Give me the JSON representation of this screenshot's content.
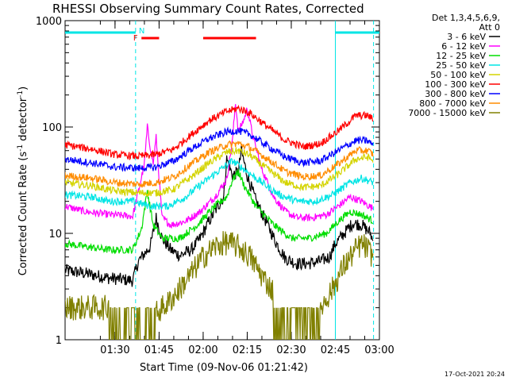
{
  "chart_data": {
    "type": "line",
    "title": "RHESSI Observing Summary Count Rates, Corrected",
    "xlabel": "Start Time (09-Nov-06 01:21:42)",
    "ylabel_main": "Corrected Count Rate (s",
    "ylabel_sup1": "-1",
    "ylabel_mid": " detector",
    "ylabel_sup2": "-1",
    "ylabel_end": ")",
    "y_scale": "log",
    "ylim": [
      1,
      1000
    ],
    "xlim_minutes": [
      -9,
      98
    ],
    "x_ticks": [
      {
        "label": "01:30",
        "min": 8
      },
      {
        "label": "01:45",
        "min": 23
      },
      {
        "label": "02:00",
        "min": 38
      },
      {
        "label": "02:15",
        "min": 53
      },
      {
        "label": "02:30",
        "min": 68
      },
      {
        "label": "02:45",
        "min": 83
      },
      {
        "label": "03:00",
        "min": 98
      }
    ],
    "y_ticks": [
      {
        "label": "1",
        "value": 1
      },
      {
        "label": "10",
        "value": 10
      },
      {
        "label": "100",
        "value": 100
      },
      {
        "label": "1000",
        "value": 1000
      }
    ],
    "legend_header": [
      "Det 1,3,4,5,6,9,",
      "Att 0"
    ],
    "series": [
      {
        "name": "3 - 6 keV",
        "color": "#000000",
        "values_min": [
          [
            -9,
            4.5
          ],
          [
            -2,
            4.2
          ],
          [
            6,
            3.8
          ],
          [
            14,
            3.6
          ],
          [
            16,
            5.5
          ],
          [
            20,
            7.5
          ],
          [
            22,
            14
          ],
          [
            24,
            9
          ],
          [
            27,
            7
          ],
          [
            30,
            6.2
          ],
          [
            34,
            7
          ],
          [
            37,
            9
          ],
          [
            40,
            13
          ],
          [
            43,
            18
          ],
          [
            45,
            22
          ],
          [
            46,
            50
          ],
          [
            48,
            35
          ],
          [
            50,
            38
          ],
          [
            51,
            60
          ],
          [
            53,
            35
          ],
          [
            56,
            20
          ],
          [
            60,
            12
          ],
          [
            63,
            8
          ],
          [
            66,
            5.8
          ],
          [
            70,
            5.2
          ],
          [
            74,
            5.2
          ],
          [
            78,
            5.5
          ],
          [
            81,
            6
          ],
          [
            83,
            8
          ],
          [
            86,
            10
          ],
          [
            89,
            12.5
          ],
          [
            92,
            12
          ],
          [
            95,
            10
          ],
          [
            96,
            8
          ]
        ]
      },
      {
        "name": "6 - 12 keV",
        "color": "#ff00ff",
        "values_min": [
          [
            -9,
            18
          ],
          [
            -2,
            16
          ],
          [
            6,
            15
          ],
          [
            14,
            14.5
          ],
          [
            16,
            25
          ],
          [
            18,
            45
          ],
          [
            19,
            100
          ],
          [
            20,
            65
          ],
          [
            21,
            45
          ],
          [
            22,
            80
          ],
          [
            24,
            14
          ],
          [
            27,
            12
          ],
          [
            32,
            13
          ],
          [
            37,
            16
          ],
          [
            42,
            22
          ],
          [
            46,
            32
          ],
          [
            48,
            75
          ],
          [
            49,
            170
          ],
          [
            50,
            90
          ],
          [
            52,
            120
          ],
          [
            53,
            150
          ],
          [
            55,
            80
          ],
          [
            58,
            40
          ],
          [
            62,
            22
          ],
          [
            66,
            16
          ],
          [
            70,
            14
          ],
          [
            75,
            14
          ],
          [
            80,
            15
          ],
          [
            84,
            18
          ],
          [
            88,
            22
          ],
          [
            92,
            20
          ],
          [
            96,
            17
          ]
        ]
      },
      {
        "name": "12 - 25 keV",
        "color": "#00dd00",
        "values_min": [
          [
            -9,
            8
          ],
          [
            -2,
            7.5
          ],
          [
            6,
            7
          ],
          [
            14,
            7
          ],
          [
            17,
            11
          ],
          [
            19,
            25
          ],
          [
            21,
            12
          ],
          [
            24,
            9
          ],
          [
            30,
            9
          ],
          [
            36,
            12
          ],
          [
            42,
            18
          ],
          [
            46,
            22
          ],
          [
            48,
            32
          ],
          [
            50,
            38
          ],
          [
            52,
            28
          ],
          [
            56,
            18
          ],
          [
            62,
            12
          ],
          [
            68,
            9
          ],
          [
            74,
            9
          ],
          [
            80,
            10
          ],
          [
            84,
            13
          ],
          [
            88,
            16
          ],
          [
            92,
            15
          ],
          [
            96,
            13
          ]
        ]
      },
      {
        "name": "25 - 50 keV",
        "color": "#00e5e5",
        "values_min": [
          [
            -9,
            23
          ],
          [
            0,
            22
          ],
          [
            6,
            20
          ],
          [
            14,
            20
          ],
          [
            20,
            18
          ],
          [
            26,
            18
          ],
          [
            32,
            22
          ],
          [
            38,
            30
          ],
          [
            44,
            40
          ],
          [
            48,
            48
          ],
          [
            52,
            40
          ],
          [
            58,
            30
          ],
          [
            64,
            23
          ],
          [
            70,
            20
          ],
          [
            76,
            20
          ],
          [
            82,
            23
          ],
          [
            88,
            30
          ],
          [
            92,
            33
          ],
          [
            96,
            30
          ]
        ]
      },
      {
        "name": "50 - 100 keV",
        "color": "#d4d400",
        "values_min": [
          [
            -9,
            30
          ],
          [
            0,
            28
          ],
          [
            8,
            25
          ],
          [
            16,
            24
          ],
          [
            22,
            24
          ],
          [
            28,
            26
          ],
          [
            34,
            34
          ],
          [
            40,
            46
          ],
          [
            46,
            58
          ],
          [
            50,
            60
          ],
          [
            54,
            54
          ],
          [
            60,
            40
          ],
          [
            66,
            30
          ],
          [
            72,
            27
          ],
          [
            78,
            28
          ],
          [
            84,
            36
          ],
          [
            90,
            50
          ],
          [
            94,
            52
          ],
          [
            96,
            48
          ]
        ]
      },
      {
        "name": "100 - 300 keV",
        "color": "#ff0000",
        "values_min": [
          [
            -9,
            68
          ],
          [
            0,
            62
          ],
          [
            8,
            55
          ],
          [
            16,
            53
          ],
          [
            22,
            55
          ],
          [
            28,
            62
          ],
          [
            34,
            85
          ],
          [
            40,
            115
          ],
          [
            46,
            140
          ],
          [
            50,
            150
          ],
          [
            54,
            135
          ],
          [
            60,
            100
          ],
          [
            66,
            75
          ],
          [
            72,
            65
          ],
          [
            78,
            70
          ],
          [
            84,
            92
          ],
          [
            90,
            128
          ],
          [
            94,
            128
          ],
          [
            96,
            118
          ]
        ]
      },
      {
        "name": "300 - 800 keV",
        "color": "#0000ff",
        "values_min": [
          [
            -9,
            50
          ],
          [
            0,
            46
          ],
          [
            8,
            42
          ],
          [
            16,
            41
          ],
          [
            22,
            42
          ],
          [
            28,
            48
          ],
          [
            34,
            62
          ],
          [
            40,
            78
          ],
          [
            46,
            90
          ],
          [
            50,
            92
          ],
          [
            54,
            85
          ],
          [
            60,
            66
          ],
          [
            66,
            52
          ],
          [
            72,
            46
          ],
          [
            78,
            48
          ],
          [
            84,
            60
          ],
          [
            90,
            75
          ],
          [
            94,
            74
          ],
          [
            96,
            68
          ]
        ]
      },
      {
        "name": "800 - 7000 keV",
        "color": "#ff8c00",
        "values_min": [
          [
            -9,
            35
          ],
          [
            0,
            33
          ],
          [
            8,
            30
          ],
          [
            16,
            29
          ],
          [
            22,
            30
          ],
          [
            28,
            34
          ],
          [
            34,
            45
          ],
          [
            40,
            58
          ],
          [
            46,
            68
          ],
          [
            50,
            70
          ],
          [
            54,
            64
          ],
          [
            60,
            50
          ],
          [
            66,
            38
          ],
          [
            72,
            34
          ],
          [
            78,
            35
          ],
          [
            84,
            45
          ],
          [
            90,
            60
          ],
          [
            94,
            60
          ],
          [
            96,
            55
          ]
        ]
      },
      {
        "name": "7000 - 15000 keV",
        "color": "#808000",
        "values_min": [
          [
            -9,
            2
          ],
          [
            6,
            2
          ],
          [
            10,
            1.5
          ],
          [
            14,
            1.4
          ],
          [
            18,
            1.6
          ],
          [
            22,
            1.8
          ],
          [
            26,
            2.2
          ],
          [
            30,
            3
          ],
          [
            34,
            4.2
          ],
          [
            38,
            6
          ],
          [
            42,
            7.5
          ],
          [
            46,
            8.2
          ],
          [
            50,
            7.5
          ],
          [
            54,
            6
          ],
          [
            58,
            4
          ],
          [
            62,
            2.8
          ],
          [
            66,
            2
          ],
          [
            70,
            1.5
          ],
          [
            74,
            1.5
          ],
          [
            78,
            2
          ],
          [
            82,
            3
          ],
          [
            86,
            5
          ],
          [
            90,
            7
          ],
          [
            92,
            8
          ],
          [
            94,
            7
          ],
          [
            96,
            6
          ]
        ]
      }
    ],
    "markers": {
      "n_label": "N",
      "f_label": "F",
      "night_bars_min": [
        [
          -9,
          15
        ],
        [
          83,
          98
        ]
      ],
      "flare_bars_min": [
        [
          17,
          23
        ],
        [
          38,
          56
        ]
      ],
      "dashed_v_min": [
        15,
        96
      ],
      "solid_v_min": [
        83
      ]
    },
    "timestamp": "17-Oct-2021 20:24"
  }
}
